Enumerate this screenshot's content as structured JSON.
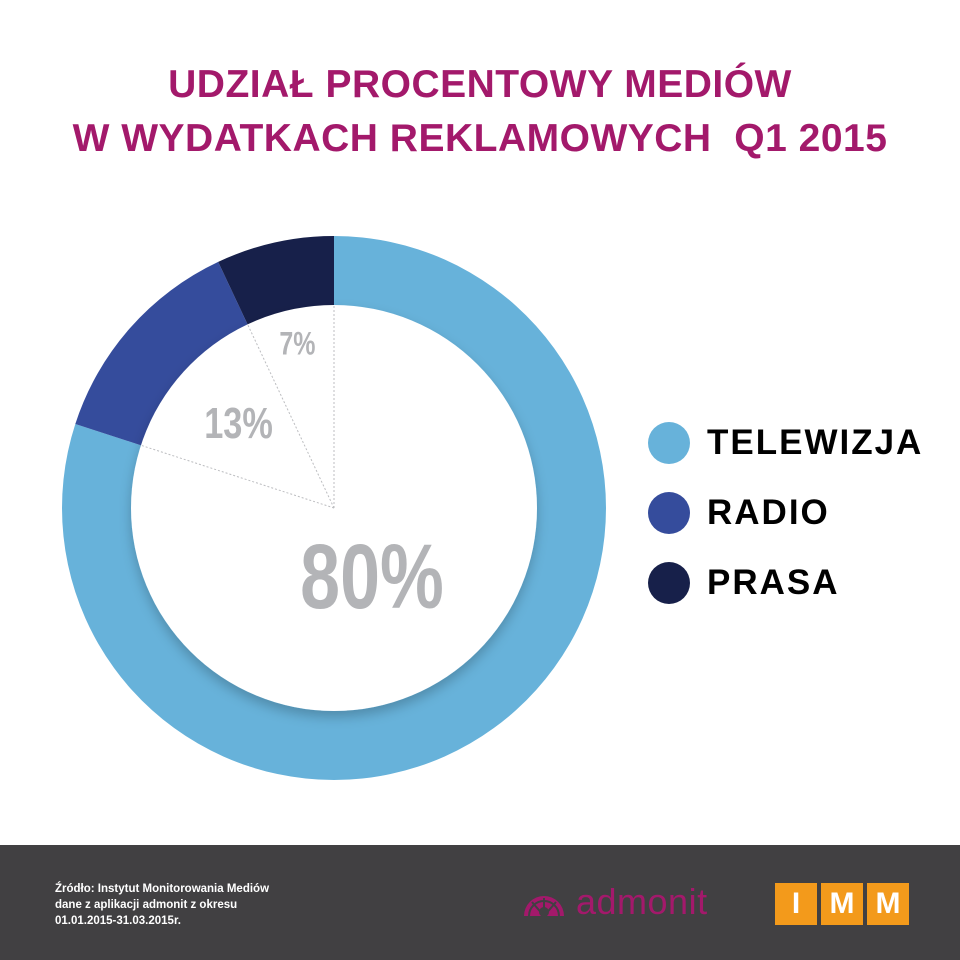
{
  "chart_data": {
    "type": "pie",
    "title_lines": [
      "UDZIAŁ PROCENTOWY MEDIÓW",
      "W WYDATKACH REKLAMOWYCH  Q1 2015"
    ],
    "categories": [
      "TELEWIZJA",
      "RADIO",
      "PRASA"
    ],
    "values": [
      80,
      13,
      7
    ],
    "data_labels": [
      "80%",
      "13%",
      "7%"
    ],
    "colors": [
      "#67b2da",
      "#354c9c",
      "#17204a"
    ],
    "label_color": "#b3b4b7",
    "legend_placement": "right",
    "style": "donut"
  },
  "footer": {
    "source_lines": [
      "Źródło: Instytut Monitorowania Mediów",
      "dane z aplikacji admonit z okresu",
      "01.01.2015-31.03.2015r."
    ],
    "logo_admonit": "admonit",
    "logo_imm_letters": [
      "I",
      "M",
      "M"
    ]
  },
  "colors": {
    "title": "#a3196b",
    "footer_bg": "#414042",
    "imm_orange": "#f39a1b"
  }
}
